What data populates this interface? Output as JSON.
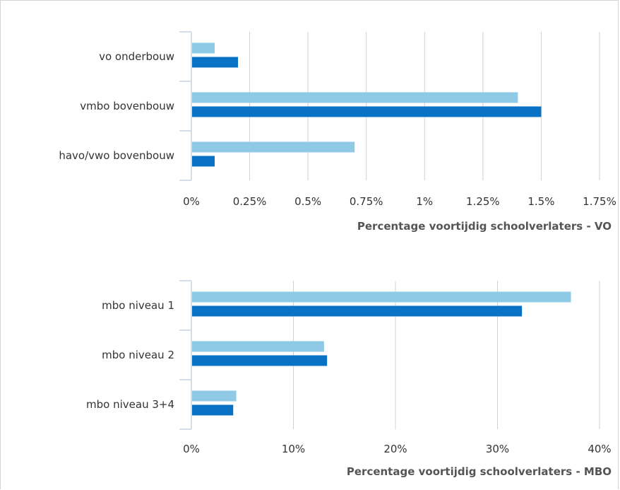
{
  "colors": {
    "light": "#8ecae6",
    "dark": "#0a72c4",
    "grid": "#d0d0d0",
    "axis": "#c8d3e0"
  },
  "chart_data": [
    {
      "type": "bar",
      "orientation": "horizontal",
      "categories": [
        "vo onderbouw",
        "vmbo bovenbouw",
        "havo/vwo bovenbouw"
      ],
      "series": [
        {
          "values": [
            0.1,
            1.4,
            0.7
          ]
        },
        {
          "values": [
            0.2,
            1.5,
            0.1
          ]
        }
      ],
      "xlim": [
        0,
        1.75
      ],
      "xticks": [
        0,
        0.25,
        0.5,
        0.75,
        1,
        1.25,
        1.5,
        1.75
      ],
      "xtick_labels": [
        "0%",
        "0.25%",
        "0.5%",
        "0.75%",
        "1%",
        "1.25%",
        "1.5%",
        "1.75%"
      ],
      "xlabel": "Percentage voortijdig schoolverlaters - VO",
      "grid": true
    },
    {
      "type": "bar",
      "orientation": "horizontal",
      "categories": [
        "mbo niveau 1",
        "mbo niveau 2",
        "mbo niveau 3+4"
      ],
      "series": [
        {
          "values": [
            37.2,
            13.0,
            4.4
          ]
        },
        {
          "values": [
            32.4,
            13.3,
            4.1
          ]
        }
      ],
      "xlim": [
        0,
        40
      ],
      "xticks": [
        0,
        10,
        20,
        30,
        40
      ],
      "xtick_labels": [
        "0%",
        "10%",
        "20%",
        "30%",
        "40%"
      ],
      "xlabel": "Percentage voortijdig schoolverlaters - MBO",
      "grid": true
    }
  ]
}
